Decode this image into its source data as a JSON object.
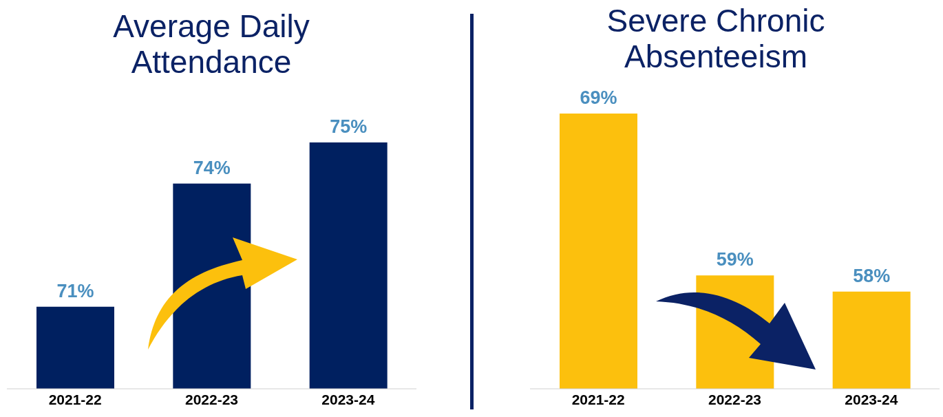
{
  "chart_data": [
    {
      "type": "bar",
      "title": "Average Daily Attendance",
      "categories": [
        "2021-22",
        "2022-23",
        "2023-24"
      ],
      "values": [
        71,
        74,
        75
      ],
      "value_labels": [
        "71%",
        "74%",
        "75%"
      ],
      "color": "#002060",
      "ylim": [
        69,
        75
      ],
      "tick_labels": "x"
    },
    {
      "type": "bar",
      "title": "Severe Chronic Absenteeism",
      "categories": [
        "2021-22",
        "2022-23",
        "2023-24"
      ],
      "values": [
        69,
        59,
        58
      ],
      "value_labels": [
        "69%",
        "59%",
        "58%"
      ],
      "color": "#fcc00d",
      "ylim": [
        52,
        69
      ],
      "tick_labels": "x"
    }
  ]
}
